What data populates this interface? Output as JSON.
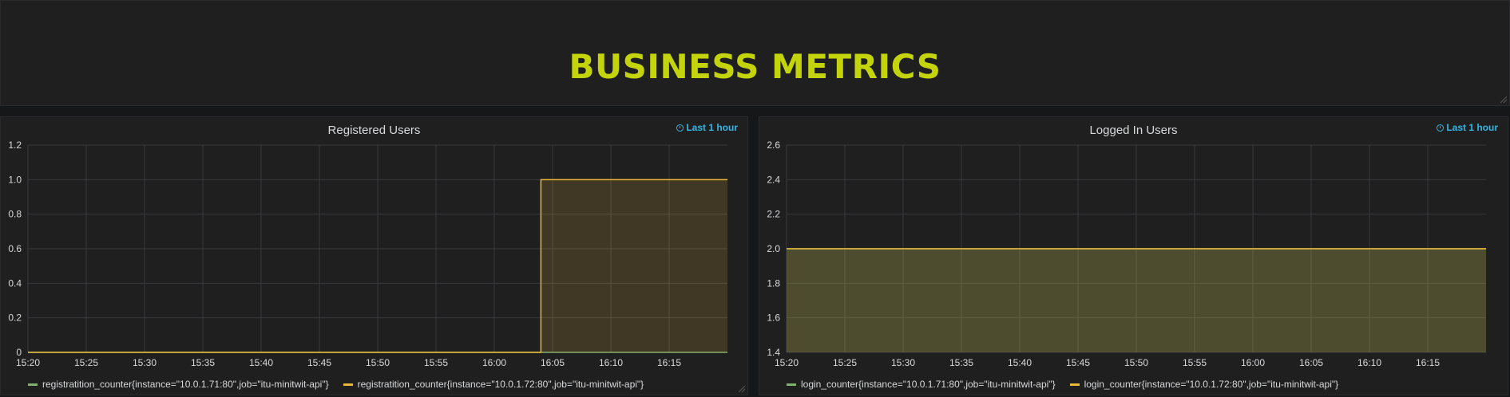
{
  "dashboard": {
    "title": "BUSINESS METRICS"
  },
  "panels": [
    {
      "title": "Registered Users",
      "time_info": "Last 1 hour",
      "legend": [
        {
          "label": "registratition_counter{instance=\"10.0.1.71:80\",job=\"itu-minitwit-api\"}",
          "color": "#7eb26d"
        },
        {
          "label": "registratition_counter{instance=\"10.0.1.72:80\",job=\"itu-minitwit-api\"}",
          "color": "#eab839"
        }
      ]
    },
    {
      "title": "Logged In Users",
      "time_info": "Last 1 hour",
      "legend": [
        {
          "label": "login_counter{instance=\"10.0.1.71:80\",job=\"itu-minitwit-api\"}",
          "color": "#7eb26d"
        },
        {
          "label": "login_counter{instance=\"10.0.1.72:80\",job=\"itu-minitwit-api\"}",
          "color": "#eab839"
        }
      ]
    }
  ],
  "chart_data": [
    {
      "type": "area",
      "title": "Registered Users",
      "x_ticks": [
        "15:20",
        "15:25",
        "15:30",
        "15:35",
        "15:40",
        "15:45",
        "15:50",
        "15:55",
        "16:00",
        "16:05",
        "16:10",
        "16:15"
      ],
      "x_range": [
        "15:20",
        "16:20"
      ],
      "y_ticks": [
        "0",
        "0.2",
        "0.4",
        "0.6",
        "0.8",
        "1.0",
        "1.2"
      ],
      "ylim": [
        0,
        1.2
      ],
      "grid": true,
      "legend_position": "bottom",
      "series": [
        {
          "name": "registratition_counter{instance=\"10.0.1.71:80\",job=\"itu-minitwit-api\"}",
          "color": "#7eb26d",
          "x": [
            "15:20",
            "16:20"
          ],
          "y": [
            0,
            0
          ]
        },
        {
          "name": "registratition_counter{instance=\"10.0.1.72:80\",job=\"itu-minitwit-api\"}",
          "color": "#eab839",
          "x": [
            "15:20",
            "16:04",
            "16:04",
            "16:20"
          ],
          "y": [
            0,
            0,
            1,
            1
          ]
        }
      ]
    },
    {
      "type": "area",
      "title": "Logged In Users",
      "x_ticks": [
        "15:20",
        "15:25",
        "15:30",
        "15:35",
        "15:40",
        "15:45",
        "15:50",
        "15:55",
        "16:00",
        "16:05",
        "16:10",
        "16:15"
      ],
      "x_range": [
        "15:20",
        "16:20"
      ],
      "y_ticks": [
        "1.4",
        "1.6",
        "1.8",
        "2.0",
        "2.2",
        "2.4",
        "2.6"
      ],
      "ylim": [
        1.4,
        2.6
      ],
      "grid": true,
      "legend_position": "bottom",
      "series": [
        {
          "name": "login_counter{instance=\"10.0.1.71:80\",job=\"itu-minitwit-api\"}",
          "color": "#7eb26d",
          "x": [
            "15:20",
            "16:20"
          ],
          "y": [
            2.0,
            2.0
          ]
        },
        {
          "name": "login_counter{instance=\"10.0.1.72:80\",job=\"itu-minitwit-api\"}",
          "color": "#eab839",
          "x": [
            "15:20",
            "16:20"
          ],
          "y": [
            2.0,
            2.0
          ]
        }
      ]
    }
  ]
}
